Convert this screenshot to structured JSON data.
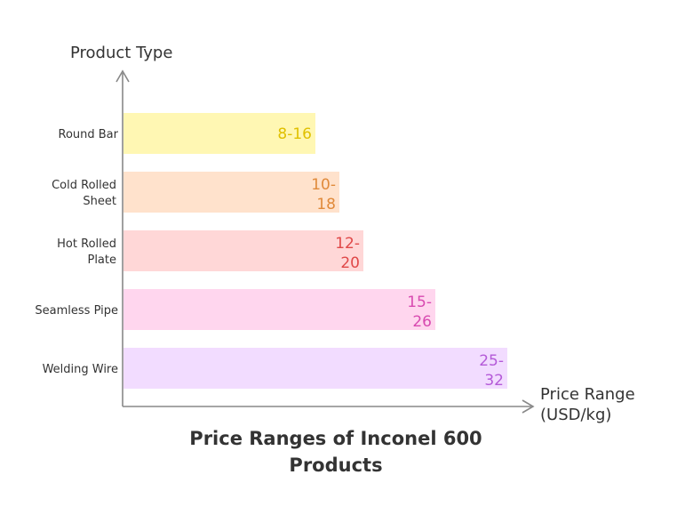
{
  "chart_data": {
    "type": "bar",
    "orientation": "horizontal",
    "title": "Price Ranges of Inconel 600 Products",
    "ylabel": "Product Type",
    "xlabel": "Price Range (USD/kg)",
    "categories": [
      {
        "name": "Round Bar",
        "low": 8,
        "high": 16,
        "value_label": "8-16",
        "color": "#fff7b3",
        "text_color": "#e0c000"
      },
      {
        "name": "Cold Rolled Sheet",
        "low": 10,
        "high": 18,
        "value_label": "10-18",
        "color": "#ffe2cc",
        "text_color": "#e08a3a"
      },
      {
        "name": "Hot Rolled Plate",
        "low": 12,
        "high": 20,
        "value_label": "12-20",
        "color": "#ffd7d7",
        "text_color": "#e04848"
      },
      {
        "name": "Seamless Pipe",
        "low": 15,
        "high": 26,
        "value_label": "15-26",
        "color": "#ffd6ee",
        "text_color": "#d84ab0"
      },
      {
        "name": "Welding Wire",
        "low": 25,
        "high": 32,
        "value_label": "25-32",
        "color": "#f2dcff",
        "text_color": "#b45ad8"
      }
    ],
    "axis_color": "#888888",
    "grid": false
  }
}
